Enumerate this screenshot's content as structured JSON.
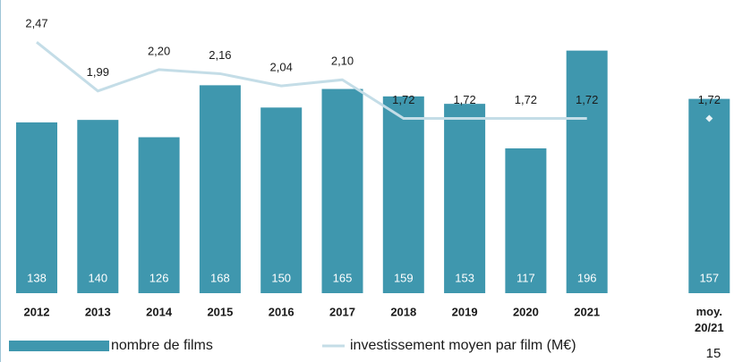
{
  "chart_data": {
    "type": "bar-line",
    "categories": [
      "2012",
      "2013",
      "2014",
      "2015",
      "2016",
      "2017",
      "2018",
      "2019",
      "2020",
      "2021",
      null,
      "moy.\n20/21"
    ],
    "series": [
      {
        "name": "nombre de films",
        "type": "bar",
        "color": "#3f97ae",
        "values": [
          138,
          140,
          126,
          168,
          150,
          165,
          159,
          153,
          117,
          196,
          null,
          157
        ]
      },
      {
        "name": "investissement moyen par film (M€)",
        "type": "line",
        "color": "#c4dde7",
        "axis": "y2",
        "values": [
          2.47,
          1.99,
          2.2,
          2.16,
          2.04,
          2.1,
          1.72,
          1.72,
          1.72,
          1.72,
          null,
          1.72
        ],
        "value_labels": [
          "2,47",
          "1,99",
          "2,20",
          "2,16",
          "2,04",
          "2,10",
          "1,72",
          "1,72",
          "1,72",
          "1,72",
          null,
          "1,72"
        ]
      }
    ],
    "ylim": [
      0,
      234
    ],
    "y2lim": [
      0,
      2.85
    ],
    "page_number": "15"
  }
}
